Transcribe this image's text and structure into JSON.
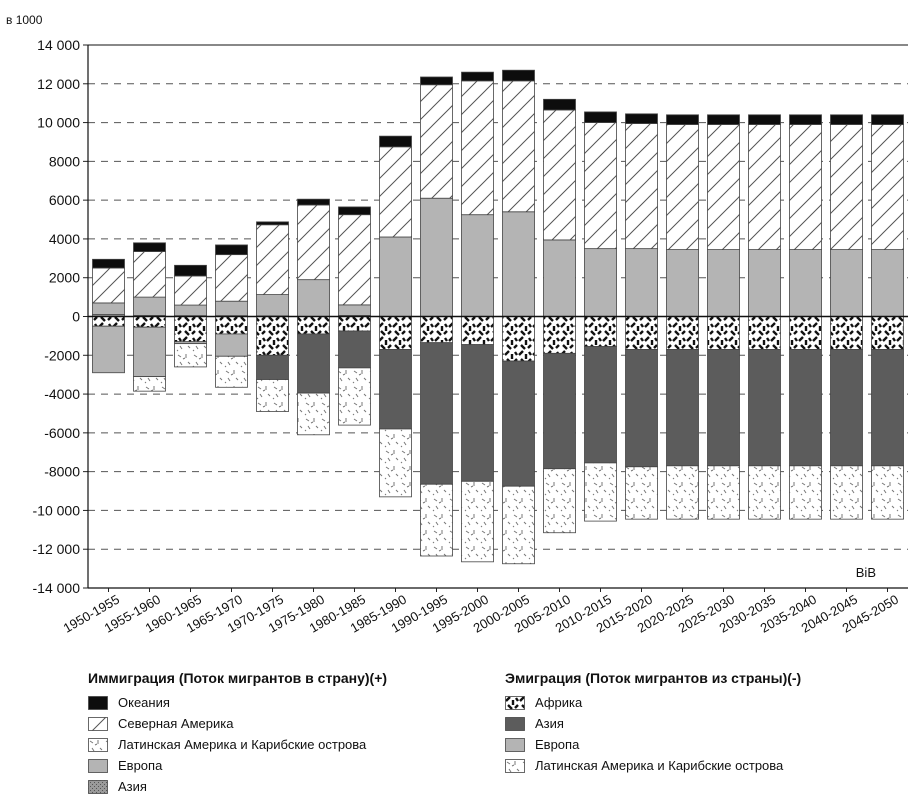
{
  "chart_data": {
    "type": "bar",
    "stacked": true,
    "unit_label": "в 1000",
    "watermark": "BiB",
    "ylim": [
      -14000,
      14000
    ],
    "yticks": [
      14000,
      12000,
      10000,
      8000,
      6000,
      4000,
      2000,
      0,
      -2000,
      -4000,
      -6000,
      -8000,
      -10000,
      -12000,
      -14000
    ],
    "ytick_labels": [
      "14 000",
      "12 000",
      "10 000",
      "8000",
      "6000",
      "4000",
      "2000",
      "0",
      "-2000",
      "-4000",
      "-6000",
      "-8000",
      "-10 000",
      "-12 000",
      "-14 000"
    ],
    "grid": true,
    "categories": [
      "1950-1955",
      "1955-1960",
      "1960-1965",
      "1965-1970",
      "1970-1975",
      "1975-1980",
      "1980-1985",
      "1985-1990",
      "1990-1995",
      "1995-2000",
      "2000-2005",
      "2005-2010",
      "2010-2015",
      "2015-2020",
      "2020-2025",
      "2025-2030",
      "2030-2035",
      "2035-2040",
      "2040-2045",
      "2045-2050"
    ],
    "immigration": {
      "title": "Иммиграция (Поток мигрантов в страну)(+)",
      "series": [
        {
          "name": "Азия",
          "pattern": "asia",
          "values": [
            100,
            50,
            40,
            40,
            30,
            0,
            50,
            0,
            0,
            0,
            0,
            0,
            0,
            0,
            0,
            0,
            0,
            0,
            0,
            0
          ]
        },
        {
          "name": "Европа",
          "pattern": "europe",
          "values": [
            600,
            950,
            550,
            750,
            1100,
            1900,
            550,
            4100,
            6100,
            5250,
            5400,
            3950,
            3500,
            3500,
            3450,
            3450,
            3450,
            3450,
            3450,
            3450
          ]
        },
        {
          "name": "Латинская Америка и Карибские острова",
          "pattern": "latam",
          "values": [
            0,
            0,
            0,
            0,
            0,
            0,
            0,
            0,
            0,
            0,
            0,
            0,
            0,
            0,
            0,
            0,
            0,
            0,
            0,
            0
          ]
        },
        {
          "name": "Северная Америка",
          "pattern": "namerica",
          "values": [
            1800,
            2350,
            1500,
            2400,
            3600,
            3850,
            4650,
            4650,
            5850,
            6900,
            6750,
            6700,
            6500,
            6450,
            6450,
            6450,
            6450,
            6450,
            6450,
            6450
          ]
        },
        {
          "name": "Океания",
          "pattern": "oceania",
          "values": [
            450,
            450,
            550,
            500,
            150,
            300,
            400,
            550,
            400,
            450,
            550,
            550,
            550,
            500,
            500,
            500,
            500,
            500,
            500,
            500
          ]
        }
      ]
    },
    "emigration": {
      "title": "Эмиграция  (Поток мигрантов из страны)(-)",
      "series": [
        {
          "name": "Африка",
          "pattern": "africa",
          "values": [
            -500,
            -550,
            -1300,
            -900,
            -2000,
            -900,
            -750,
            -1700,
            -1350,
            -1450,
            -2300,
            -1900,
            -1550,
            -1700,
            -1700,
            -1700,
            -1700,
            -1700,
            -1700,
            -1700
          ]
        },
        {
          "name": "Азия",
          "pattern": "asia_em",
          "values": [
            0,
            0,
            0,
            0,
            -1250,
            -3050,
            -1900,
            -4100,
            -7300,
            -7050,
            -6450,
            -5950,
            -6000,
            -6050,
            -6000,
            -6000,
            -6000,
            -6000,
            -6000,
            -6000
          ]
        },
        {
          "name": "Европа",
          "pattern": "europe",
          "values": [
            -2400,
            -2550,
            -100,
            -1150,
            0,
            0,
            0,
            0,
            0,
            0,
            0,
            0,
            0,
            0,
            0,
            0,
            0,
            0,
            0,
            0
          ]
        },
        {
          "name": "Латинская Америка и Карибские острова",
          "pattern": "latam",
          "values": [
            0,
            -750,
            -1200,
            -1600,
            -1650,
            -2150,
            -2950,
            -3500,
            -3700,
            -4150,
            -4000,
            -3300,
            -3000,
            -2700,
            -2750,
            -2750,
            -2750,
            -2750,
            -2750,
            -2750
          ]
        }
      ]
    },
    "legend": {
      "immigration_title": "Иммиграция (Поток мигрантов в страну)(+)",
      "immigration_items": [
        {
          "name": "Океания",
          "pattern": "oceania"
        },
        {
          "name": "Северная Америка",
          "pattern": "namerica"
        },
        {
          "name": "Латинская Америка и Карибские острова",
          "pattern": "latam"
        },
        {
          "name": "Европа",
          "pattern": "europe"
        },
        {
          "name": "Азия",
          "pattern": "asia"
        }
      ],
      "emigration_title": "Эмиграция  (Поток мигрантов из страны)(-)",
      "emigration_items": [
        {
          "name": "Африка",
          "pattern": "africa"
        },
        {
          "name": "Азия",
          "pattern": "asia_em"
        },
        {
          "name": "Европа",
          "pattern": "europe"
        },
        {
          "name": "Латинская Америка и Карибские острова",
          "pattern": "latam"
        }
      ]
    }
  }
}
